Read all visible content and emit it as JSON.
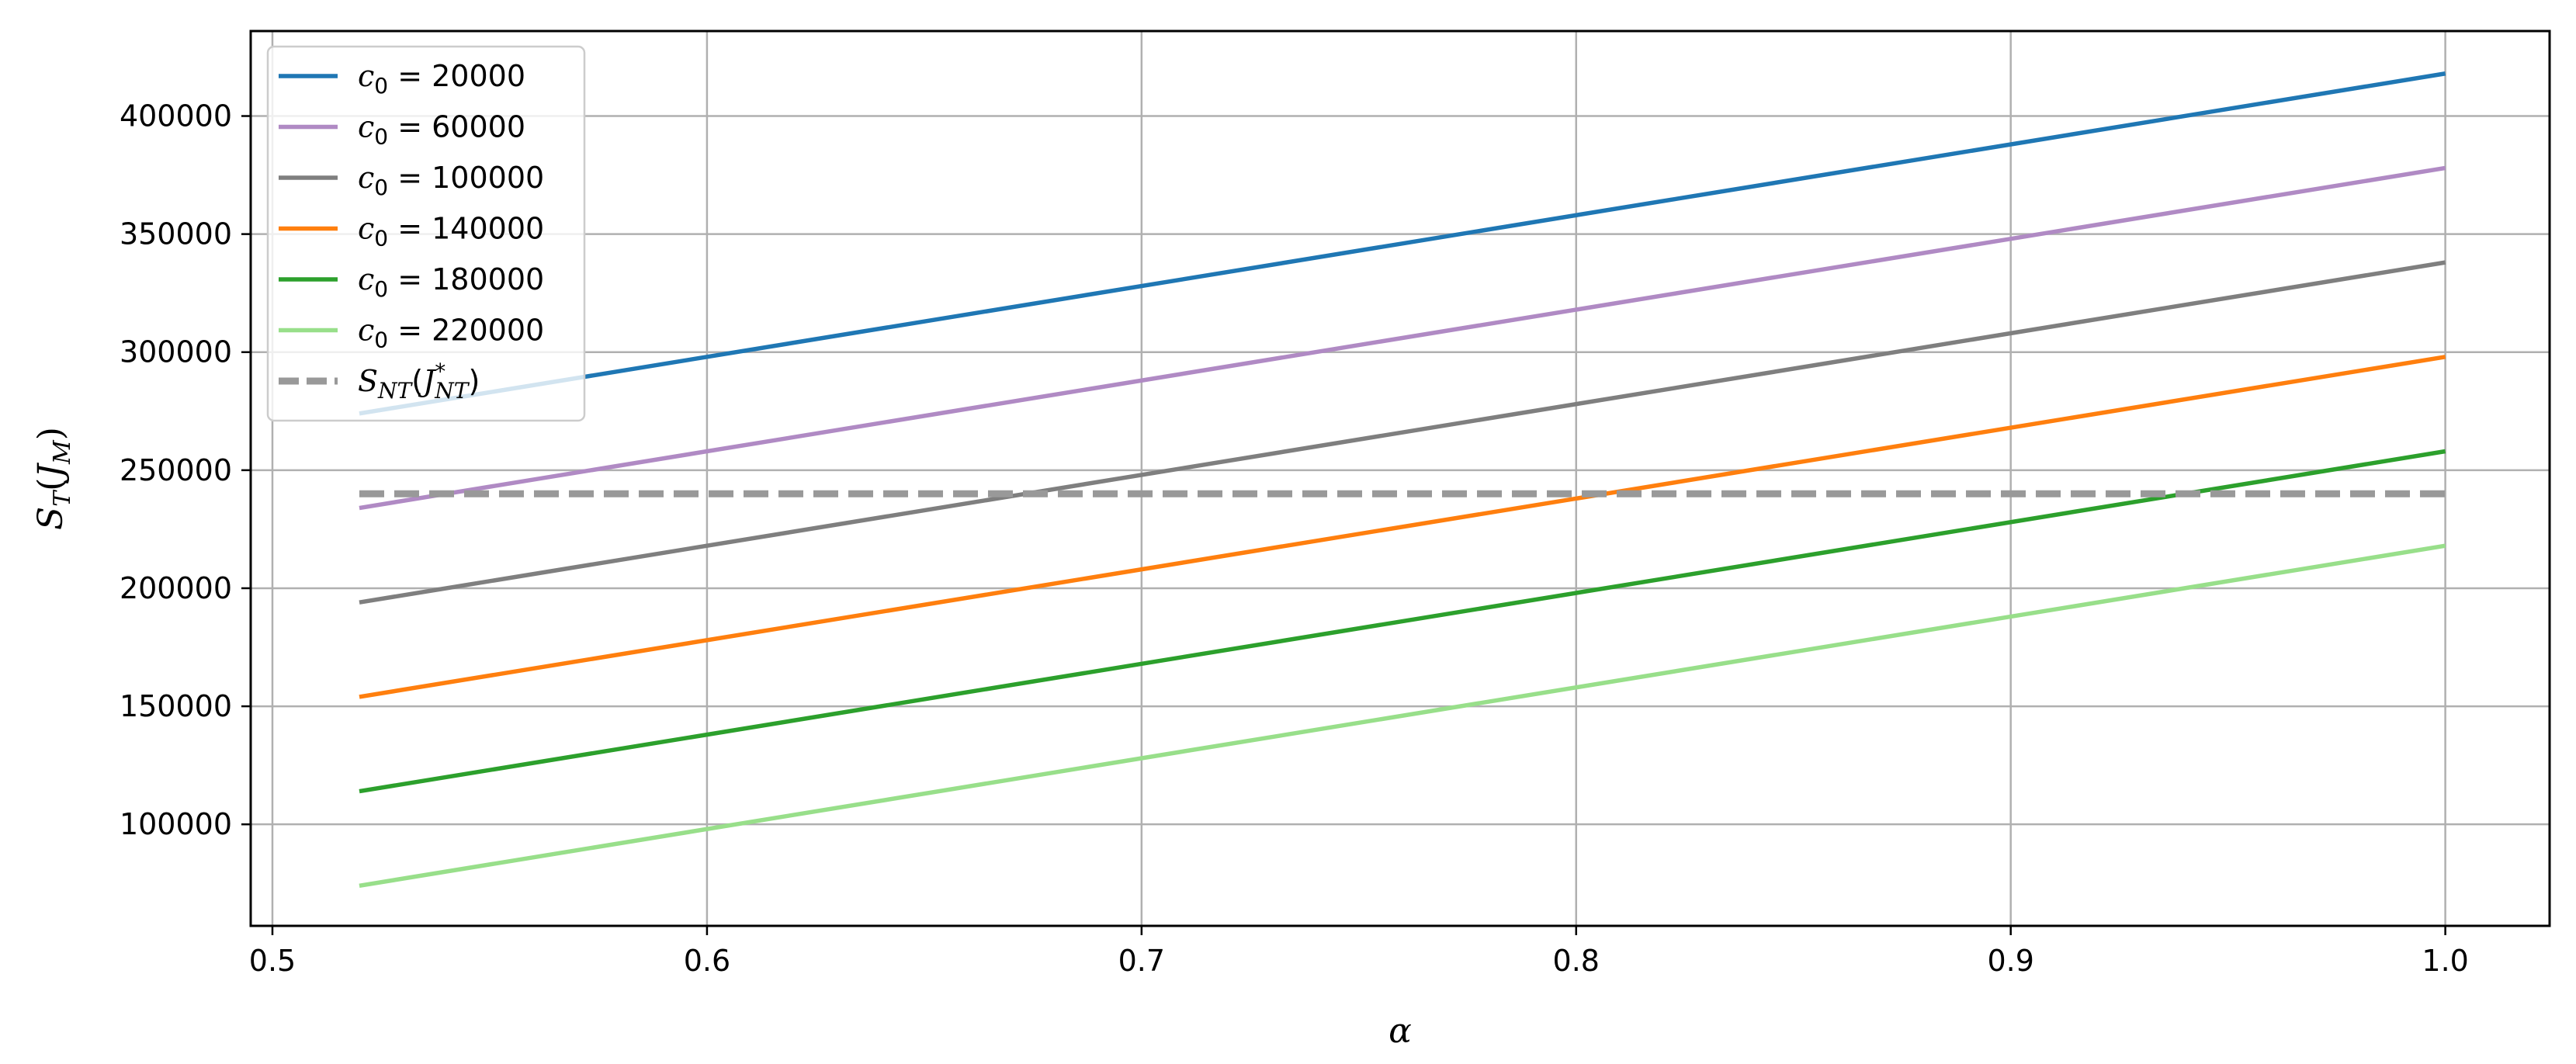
{
  "chart_data": {
    "type": "line",
    "xlabel": "α",
    "ylabel": "S",
    "ylabel_sub": "T",
    "ylabel_arg": "J",
    "ylabel_arg_sub": "M",
    "xlim": [
      0.495,
      1.024
    ],
    "ylim": [
      57000,
      436000
    ],
    "xticks": [
      "0.5",
      "0.6",
      "0.7",
      "0.8",
      "0.9",
      "1.0"
    ],
    "xtick_values": [
      0.5,
      0.6,
      0.7,
      0.8,
      0.9,
      1.0
    ],
    "yticks": [
      "100000",
      "150000",
      "200000",
      "250000",
      "300000",
      "350000",
      "400000"
    ],
    "ytick_values": [
      100000,
      150000,
      200000,
      250000,
      300000,
      350000,
      400000
    ],
    "grid": true,
    "legend_position": "top-left",
    "x": [
      0.52,
      1.0
    ],
    "series": [
      {
        "name": "20000",
        "color": "#1f77b4",
        "values": [
          274000,
          418000
        ],
        "style": "solid"
      },
      {
        "name": "60000",
        "color": "#b08ac4",
        "values": [
          234000,
          378000
        ],
        "style": "solid"
      },
      {
        "name": "100000",
        "color": "#7f7f7f",
        "values": [
          194000,
          338000
        ],
        "style": "solid"
      },
      {
        "name": "140000",
        "color": "#ff7f0e",
        "values": [
          154000,
          298000
        ],
        "style": "solid"
      },
      {
        "name": "180000",
        "color": "#2ca02c",
        "values": [
          114000,
          258000
        ],
        "style": "solid"
      },
      {
        "name": "220000",
        "color": "#98df8a",
        "values": [
          74000,
          218000
        ],
        "style": "solid"
      },
      {
        "name": "S_NT(J*_NT)",
        "color": "#999999",
        "values": [
          240000,
          240000
        ],
        "style": "dashed"
      }
    ]
  }
}
